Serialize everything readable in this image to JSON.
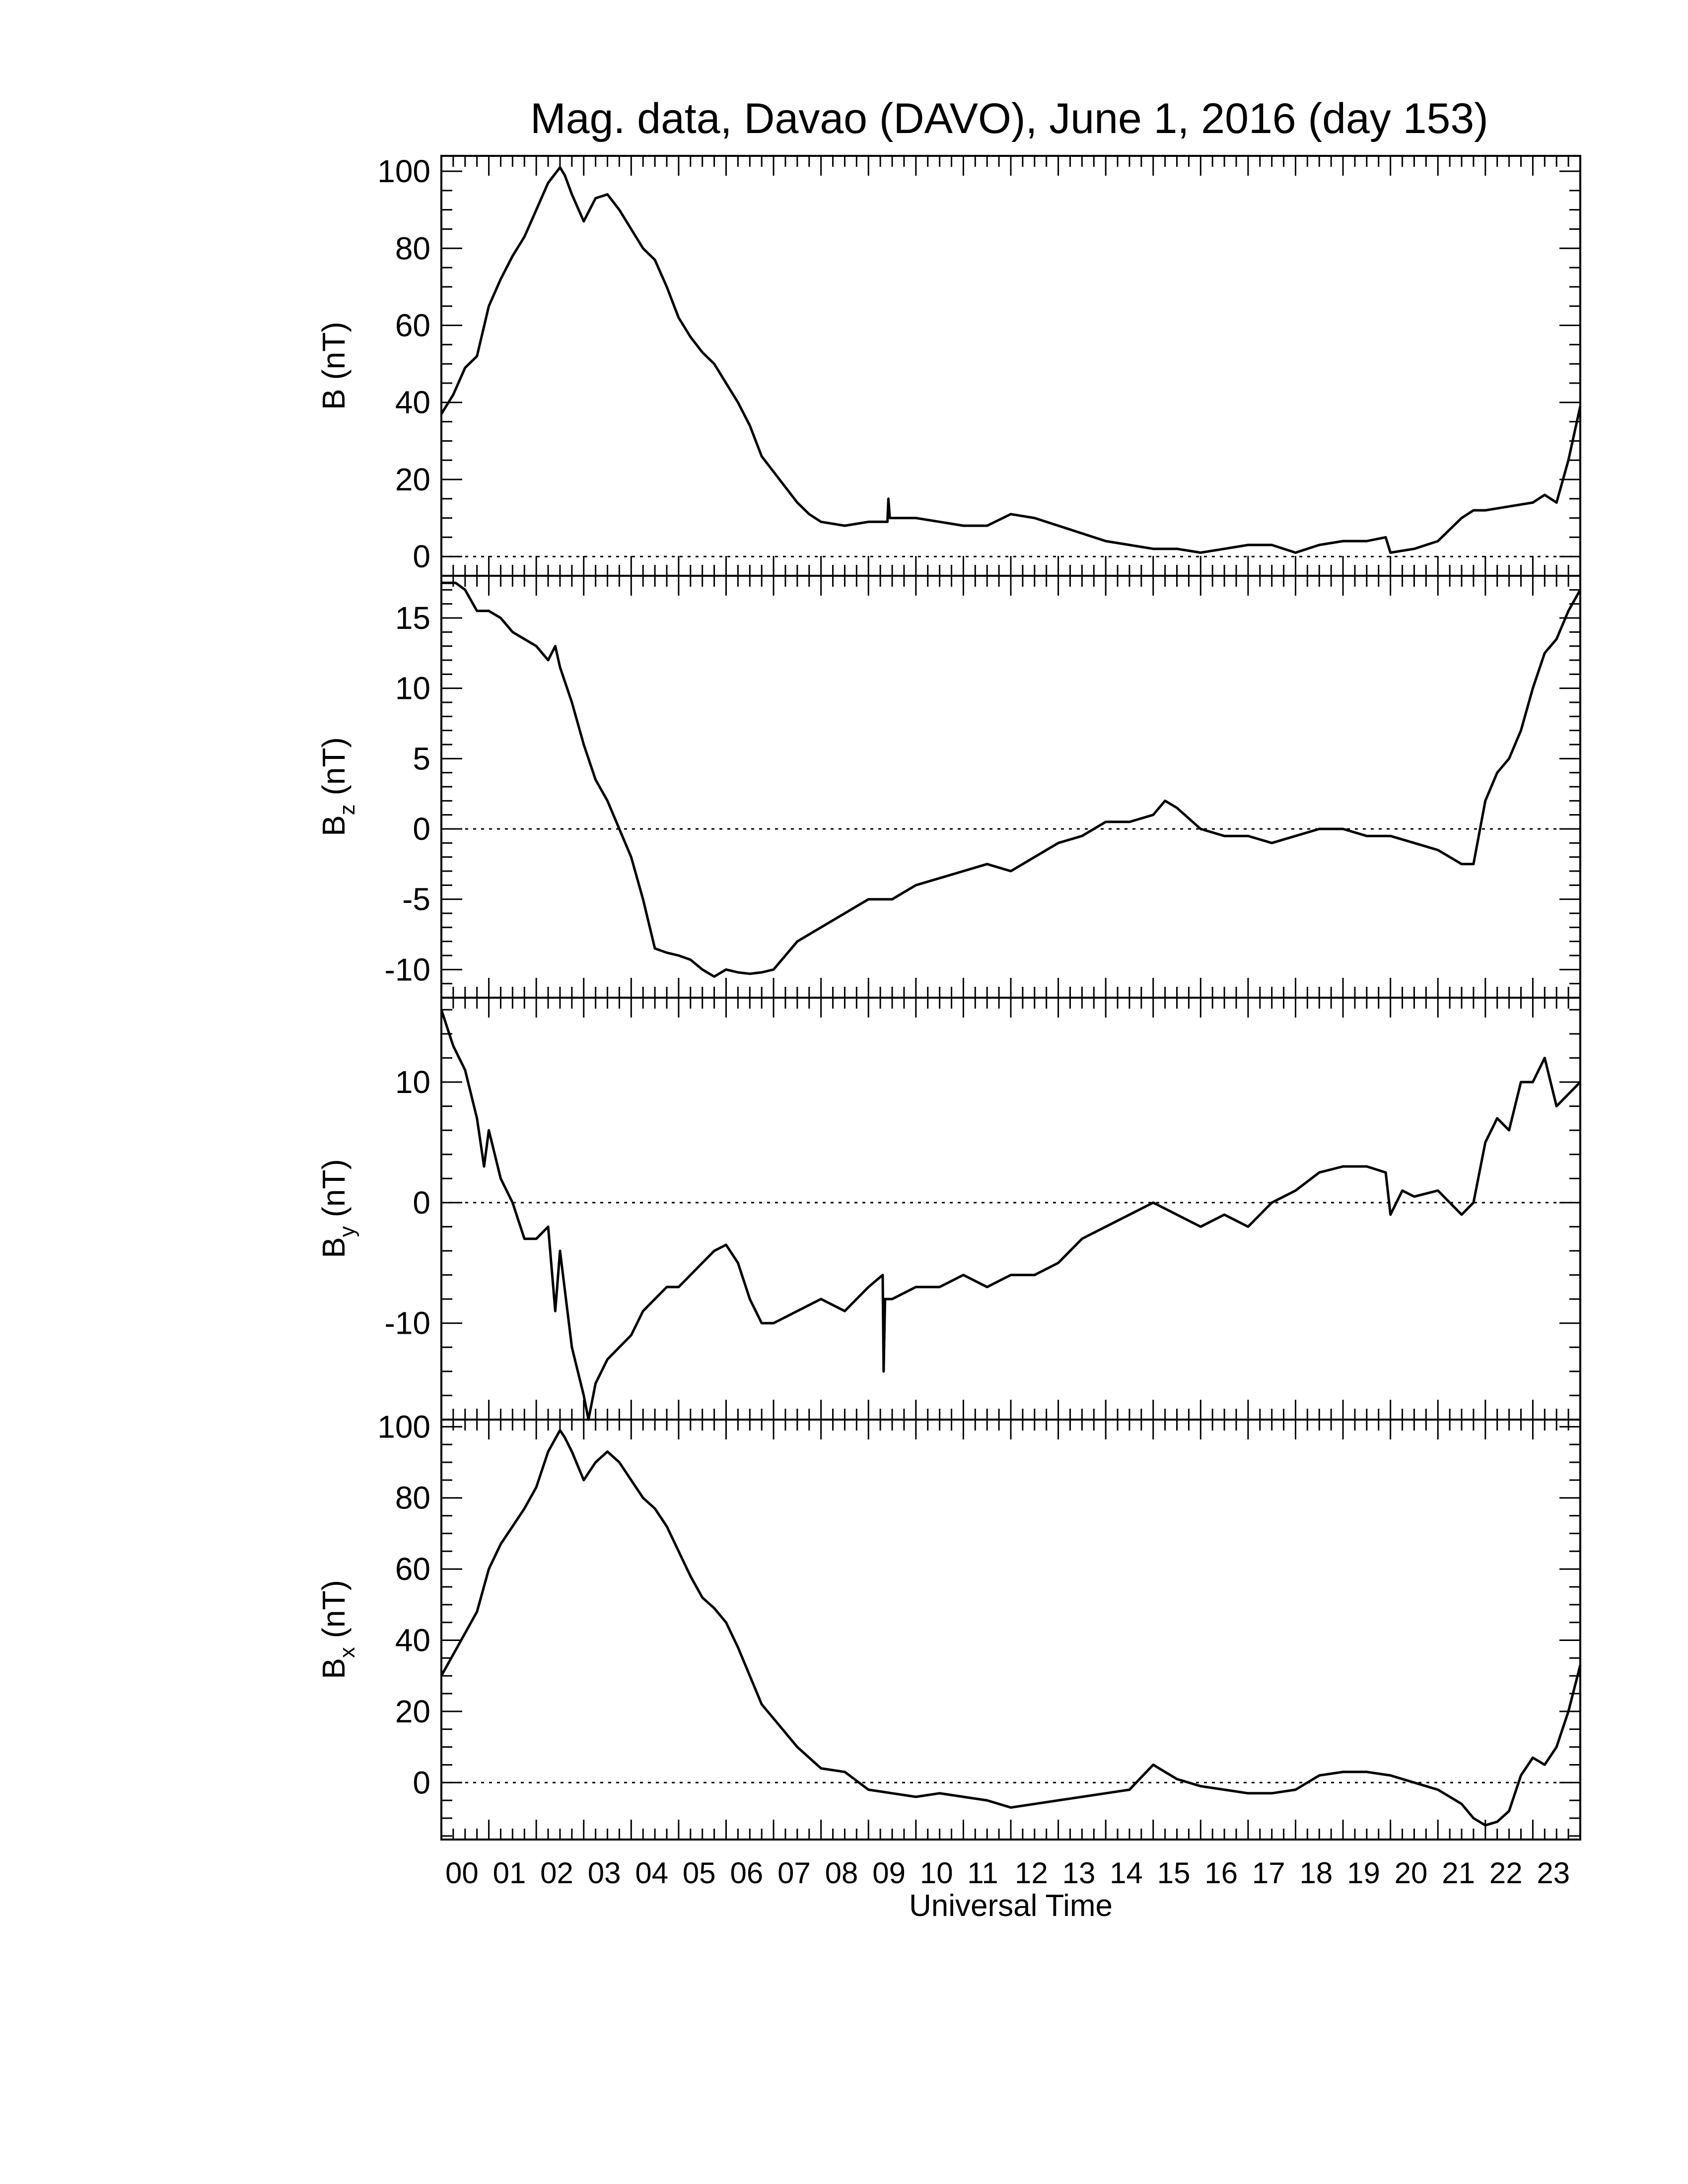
{
  "figure": {
    "title": "Mag. data, Davao (DAVO), June 1, 2016 (day 153)",
    "xlabel": "Universal Time",
    "x_tick_labels": [
      "00",
      "01",
      "02",
      "03",
      "04",
      "05",
      "06",
      "07",
      "08",
      "09",
      "10",
      "11",
      "12",
      "13",
      "14",
      "15",
      "16",
      "17",
      "18",
      "19",
      "20",
      "21",
      "22",
      "23"
    ]
  },
  "colors": {
    "line": "#000000",
    "background": "#ffffff",
    "zero_line": "#000000"
  },
  "chart_data": [
    {
      "type": "line",
      "ylabel": "B (nT)",
      "ylabel_main": "B",
      "ylabel_sub": "",
      "ylabel_unit": " (nT)",
      "ylim": [
        -5,
        104
      ],
      "yticks": [
        0,
        20,
        40,
        60,
        80,
        100
      ],
      "yminor": [
        -5,
        5,
        10,
        15,
        25,
        30,
        35,
        45,
        50,
        55,
        65,
        70,
        75,
        85,
        90,
        95
      ],
      "xlim": [
        0,
        24
      ],
      "zero_line": true,
      "series": [
        {
          "x": [
            0,
            0.25,
            0.5,
            0.75,
            1,
            1.25,
            1.5,
            1.75,
            2,
            2.25,
            2.5,
            2.6,
            2.75,
            3,
            3.25,
            3.5,
            3.75,
            4,
            4.25,
            4.5,
            4.75,
            5,
            5.25,
            5.5,
            5.75,
            6,
            6.25,
            6.5,
            6.75,
            7,
            7.25,
            7.5,
            7.75,
            8,
            8.5,
            9,
            9.4,
            9.42,
            9.45,
            9.5,
            10,
            10.5,
            11,
            11.5,
            12,
            12.5,
            13,
            13.5,
            14,
            14.5,
            15,
            15.5,
            16,
            16.5,
            17,
            17.5,
            18,
            18.5,
            19,
            19.5,
            19.9,
            20,
            20.5,
            21,
            21.5,
            21.75,
            22,
            22.5,
            23,
            23.25,
            23.5,
            23.75,
            24
          ],
          "y": [
            37,
            42,
            49,
            52,
            65,
            72,
            78,
            83,
            90,
            97,
            101,
            99,
            94,
            87,
            93,
            94,
            90,
            85,
            80,
            77,
            70,
            62,
            57,
            53,
            50,
            45,
            40,
            34,
            26,
            22,
            18,
            14,
            11,
            9,
            8,
            9,
            9,
            15,
            10,
            10,
            10,
            9,
            8,
            8,
            11,
            10,
            8,
            6,
            4,
            3,
            2,
            2,
            1,
            2,
            3,
            3,
            1,
            3,
            4,
            4,
            5,
            1,
            2,
            4,
            10,
            12,
            12,
            13,
            14,
            16,
            14,
            25,
            39
          ]
        }
      ]
    },
    {
      "type": "line",
      "ylabel": "Bz (nT)",
      "ylabel_main": "B",
      "ylabel_sub": "z",
      "ylabel_unit": " (nT)",
      "ylim": [
        -12,
        18
      ],
      "yticks": [
        -10,
        -5,
        0,
        5,
        10,
        15
      ],
      "yminor": [
        -11,
        -9,
        -8,
        -7,
        -6,
        -4,
        -3,
        -2,
        -1,
        1,
        2,
        3,
        4,
        6,
        7,
        8,
        9,
        11,
        12,
        13,
        14,
        16,
        17
      ],
      "xlim": [
        0,
        24
      ],
      "zero_line": true,
      "series": [
        {
          "x": [
            0,
            0.3,
            0.5,
            0.75,
            1,
            1.25,
            1.5,
            2,
            2.25,
            2.4,
            2.5,
            2.75,
            3,
            3.25,
            3.5,
            3.75,
            4,
            4.25,
            4.5,
            4.75,
            5,
            5.25,
            5.5,
            5.75,
            6,
            6.25,
            6.5,
            6.75,
            7,
            7.25,
            7.5,
            8,
            8.5,
            9,
            9.5,
            10,
            10.5,
            11,
            11.5,
            12,
            12.5,
            13,
            13.5,
            14,
            14.5,
            15,
            15.25,
            15.5,
            16,
            16.5,
            17,
            17.5,
            18,
            18.5,
            19,
            19.5,
            20,
            20.5,
            21,
            21.5,
            21.75,
            22,
            22.25,
            22.5,
            22.75,
            23,
            23.25,
            23.5,
            23.75,
            24
          ],
          "y": [
            17.5,
            17.5,
            17,
            15.5,
            15.5,
            15,
            14,
            13,
            12,
            13,
            11.5,
            9,
            6,
            3.5,
            2,
            0,
            -2,
            -5,
            -8.5,
            -8.8,
            -9,
            -9.3,
            -10,
            -10.5,
            -10,
            -10.2,
            -10.3,
            -10.2,
            -10,
            -9,
            -8,
            -7,
            -6,
            -5,
            -5,
            -4,
            -3.5,
            -3,
            -2.5,
            -3,
            -2,
            -1,
            -0.5,
            0.5,
            0.5,
            1,
            2,
            1.5,
            0,
            -0.5,
            -0.5,
            -1,
            -0.5,
            0,
            0,
            -0.5,
            -0.5,
            -1,
            -1.5,
            -2.5,
            -2.5,
            2,
            4,
            5,
            7,
            10,
            12.5,
            13.5,
            15.5,
            17
          ]
        }
      ]
    },
    {
      "type": "line",
      "ylabel": "By (nT)",
      "ylabel_main": "B",
      "ylabel_sub": "y",
      "ylabel_unit": " (nT)",
      "ylim": [
        -18,
        17
      ],
      "yticks": [
        -10,
        0,
        10
      ],
      "yminor": [
        -16,
        -14,
        -12,
        -8,
        -6,
        -4,
        -2,
        2,
        4,
        6,
        8,
        12,
        14,
        16
      ],
      "xlim": [
        0,
        24
      ],
      "zero_line": true,
      "series": [
        {
          "x": [
            0,
            0.25,
            0.5,
            0.75,
            0.9,
            1,
            1.25,
            1.5,
            1.75,
            2,
            2.25,
            2.4,
            2.5,
            2.75,
            3,
            3.1,
            3.25,
            3.5,
            3.75,
            4,
            4.25,
            4.5,
            4.75,
            5,
            5.25,
            5.5,
            5.75,
            6,
            6.25,
            6.5,
            6.75,
            7,
            7.5,
            8,
            8.5,
            9,
            9.3,
            9.32,
            9.35,
            9.5,
            10,
            10.5,
            11,
            11.5,
            12,
            12.5,
            13,
            13.5,
            14,
            14.5,
            15,
            15.5,
            16,
            16.5,
            17,
            17.5,
            18,
            18.5,
            19,
            19.5,
            19.9,
            20,
            20.25,
            20.5,
            21,
            21.5,
            21.75,
            22,
            22.25,
            22.5,
            22.75,
            23,
            23.25,
            23.5,
            23.75,
            24
          ],
          "y": [
            16,
            13,
            11,
            7,
            3,
            6,
            2,
            0,
            -3,
            -3,
            -2,
            -9,
            -4,
            -12,
            -16,
            -18,
            -15,
            -13,
            -12,
            -11,
            -9,
            -8,
            -7,
            -7,
            -6,
            -5,
            -4,
            -3.5,
            -5,
            -8,
            -10,
            -10,
            -9,
            -8,
            -9,
            -7,
            -6,
            -14,
            -8,
            -8,
            -7,
            -7,
            -6,
            -7,
            -6,
            -6,
            -5,
            -3,
            -2,
            -1,
            0,
            -1,
            -2,
            -1,
            -2,
            0,
            1,
            2.5,
            3,
            3,
            2.5,
            -1,
            1,
            0.5,
            1,
            -1,
            0,
            5,
            7,
            6,
            10,
            10,
            12,
            8,
            9,
            10
          ]
        }
      ]
    },
    {
      "type": "line",
      "ylabel": "Bx (nT)",
      "ylabel_main": "B",
      "ylabel_sub": "x",
      "ylabel_unit": " (nT)",
      "ylim": [
        -16,
        102
      ],
      "yticks": [
        0,
        20,
        40,
        60,
        80,
        100
      ],
      "yminor": [
        -15,
        -10,
        -5,
        5,
        10,
        15,
        25,
        30,
        35,
        45,
        50,
        55,
        65,
        70,
        75,
        85,
        90,
        95
      ],
      "xlim": [
        0,
        24
      ],
      "zero_line": true,
      "series": [
        {
          "x": [
            0,
            0.25,
            0.5,
            0.75,
            1,
            1.25,
            1.5,
            1.75,
            2,
            2.25,
            2.5,
            2.6,
            2.75,
            3,
            3.25,
            3.5,
            3.75,
            4,
            4.25,
            4.5,
            4.75,
            5,
            5.25,
            5.5,
            5.75,
            6,
            6.25,
            6.5,
            6.75,
            7,
            7.25,
            7.5,
            7.75,
            8,
            8.5,
            9,
            9.5,
            10,
            10.5,
            11,
            11.5,
            12,
            12.5,
            13,
            13.5,
            14,
            14.5,
            15,
            15.25,
            15.5,
            16,
            16.5,
            17,
            17.5,
            18,
            18.5,
            19,
            19.5,
            20,
            20.5,
            21,
            21.5,
            21.75,
            22,
            22.25,
            22.5,
            22.75,
            23,
            23.25,
            23.5,
            23.75,
            24
          ],
          "y": [
            30,
            36,
            42,
            48,
            60,
            67,
            72,
            77,
            83,
            93,
            99,
            97,
            93,
            85,
            90,
            93,
            90,
            85,
            80,
            77,
            72,
            65,
            58,
            52,
            49,
            45,
            38,
            30,
            22,
            18,
            14,
            10,
            7,
            4,
            3,
            -2,
            -3,
            -4,
            -3,
            -4,
            -5,
            -7,
            -6,
            -5,
            -4,
            -3,
            -2,
            5,
            3,
            1,
            -1,
            -2,
            -3,
            -3,
            -2,
            2,
            3,
            3,
            2,
            0,
            -2,
            -6,
            -10,
            -12,
            -11,
            -8,
            2,
            7,
            5,
            10,
            20,
            33
          ]
        }
      ]
    }
  ]
}
